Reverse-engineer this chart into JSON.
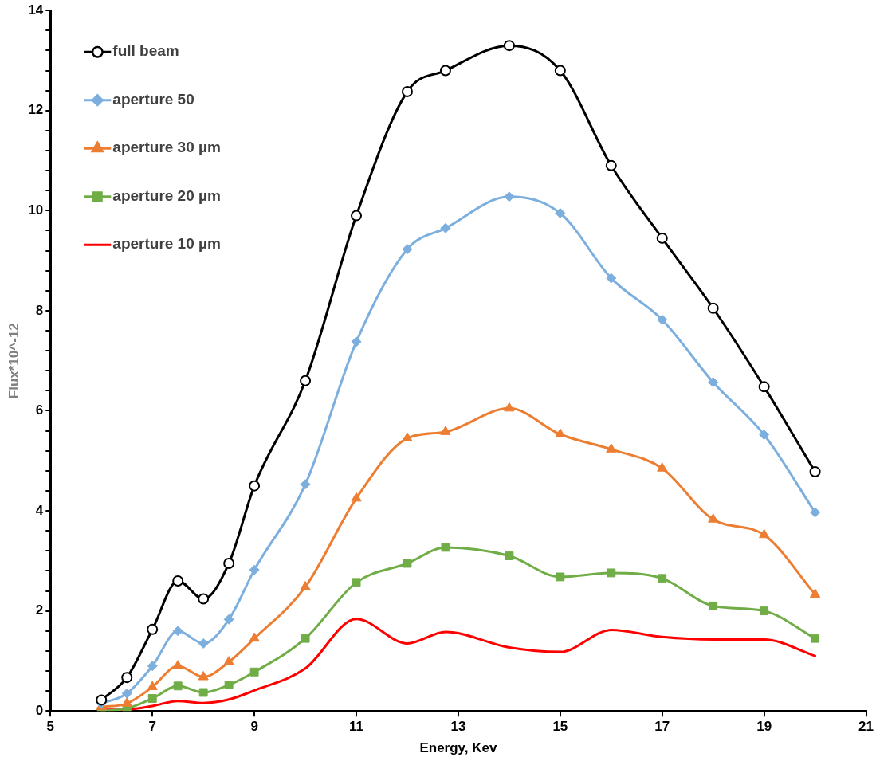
{
  "chart_data": {
    "type": "line",
    "xlabel": "Energy, Kev",
    "ylabel": "Flux*10^-12",
    "x": [
      6,
      6.5,
      7,
      7.5,
      8,
      8.5,
      9,
      10,
      11,
      12,
      12.75,
      14,
      15,
      16,
      17,
      18,
      19,
      20
    ],
    "xlim": [
      5,
      21
    ],
    "xticks": [
      5,
      7,
      9,
      11,
      13,
      15,
      17,
      19,
      21
    ],
    "ylim": [
      0,
      14
    ],
    "yticks": [
      0,
      {
        "value": 0.4,
        "label": null
      },
      {
        "value": 0.8,
        "label": null
      },
      {
        "value": 1.2,
        "label": null
      },
      {
        "value": 1.6,
        "label": null
      },
      2,
      {
        "value": 2.4,
        "label": null
      },
      {
        "value": 2.8,
        "label": null
      },
      {
        "value": 3.2,
        "label": null
      },
      {
        "value": 3.6,
        "label": null
      },
      4,
      {
        "value": 4.4,
        "label": null
      },
      {
        "value": 4.8,
        "label": null
      },
      {
        "value": 5.2,
        "label": null
      },
      {
        "value": 5.6,
        "label": null
      },
      6,
      {
        "value": 6.4,
        "label": null
      },
      {
        "value": 6.8,
        "label": null
      },
      {
        "value": 7.2,
        "label": null
      },
      {
        "value": 7.6,
        "label": null
      },
      8,
      {
        "value": 8.4,
        "label": null
      },
      {
        "value": 8.8,
        "label": null
      },
      {
        "value": 9.2,
        "label": null
      },
      {
        "value": 9.6,
        "label": null
      },
      10,
      {
        "value": 10.4,
        "label": null
      },
      {
        "value": 10.8,
        "label": null
      },
      {
        "value": 11.2,
        "label": null
      },
      {
        "value": 11.6,
        "label": null
      },
      12,
      {
        "value": 12.4,
        "label": null
      },
      {
        "value": 12.8,
        "label": null
      },
      {
        "value": 13.2,
        "label": null
      },
      {
        "value": 13.6,
        "label": null
      },
      14
    ],
    "grid": false,
    "legend": "top left",
    "line_style": "solid",
    "series": [
      {
        "name": "full beam",
        "color": "#000000",
        "marker": "circle",
        "values": [
          0.22,
          0.67,
          1.63,
          2.6,
          2.24,
          2.95,
          4.5,
          6.6,
          9.9,
          12.38,
          12.8,
          13.3,
          12.8,
          10.9,
          9.45,
          8.05,
          6.48,
          4.78
        ]
      },
      {
        "name": "aperture 50",
        "color": "#7cafde",
        "marker": "diamond",
        "values": [
          0.15,
          0.35,
          0.9,
          1.6,
          1.35,
          1.83,
          2.82,
          4.53,
          7.38,
          9.23,
          9.65,
          10.28,
          9.95,
          8.65,
          7.82,
          6.57,
          5.52,
          3.97
        ]
      },
      {
        "name": "aperture 30 µm",
        "color": "#ed7d31",
        "marker": "triangle",
        "values": [
          0.08,
          0.15,
          0.48,
          0.9,
          0.68,
          0.98,
          1.45,
          2.48,
          4.25,
          5.45,
          5.58,
          6.05,
          5.53,
          5.23,
          4.85,
          3.83,
          3.52,
          2.33
        ]
      },
      {
        "name": "aperture 20 µm",
        "color": "#70ad47",
        "marker": "square",
        "values": [
          0.0,
          0.05,
          0.25,
          0.5,
          0.37,
          0.52,
          0.78,
          1.45,
          2.57,
          2.95,
          3.27,
          3.1,
          2.68,
          2.76,
          2.65,
          2.1,
          2.0,
          1.45
        ]
      },
      {
        "name": "aperture 10 µm",
        "color": "#ff0000",
        "marker": "none",
        "values": [
          0.02,
          0.03,
          0.1,
          0.2,
          0.16,
          0.23,
          0.41,
          0.85,
          1.84,
          1.35,
          1.58,
          1.27,
          1.18,
          1.62,
          1.48,
          1.43,
          1.43,
          1.1
        ]
      }
    ]
  }
}
